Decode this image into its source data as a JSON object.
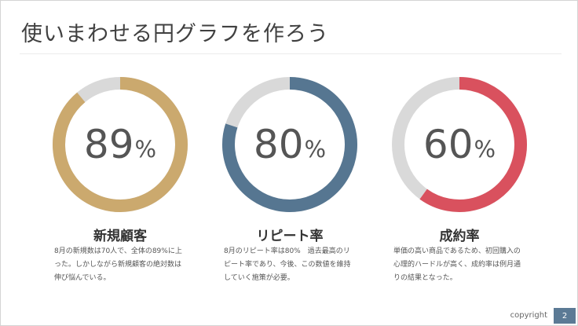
{
  "title": "使いまわせる円グラフを作ろう",
  "chart_data": {
    "type": "pie",
    "track_color": "#d9d9d9",
    "charts": [
      {
        "label": "新規顧客",
        "value": 89,
        "value_text": "89",
        "unit": "%",
        "color": "#cba96e",
        "description": "8月の新規数は70人で、全体の89%に上った。しかしながら新規顧客の絶対数は伸び悩んでいる。"
      },
      {
        "label": "リピート率",
        "value": 80,
        "value_text": "80",
        "unit": "%",
        "color": "#567691",
        "description": "8月のリピート率は80%　過去最高のリピート率であり、今後、この数値を維持していく施策が必要。"
      },
      {
        "label": "成約率",
        "value": 60,
        "value_text": "60",
        "unit": "%",
        "color": "#d9515e",
        "description": "単価の高い商品であるため、初回購入の心理的ハードルが高く、成約率は例月通りの結果となった。"
      }
    ]
  },
  "footer": {
    "copyright": "copyright",
    "page_number": "2"
  }
}
